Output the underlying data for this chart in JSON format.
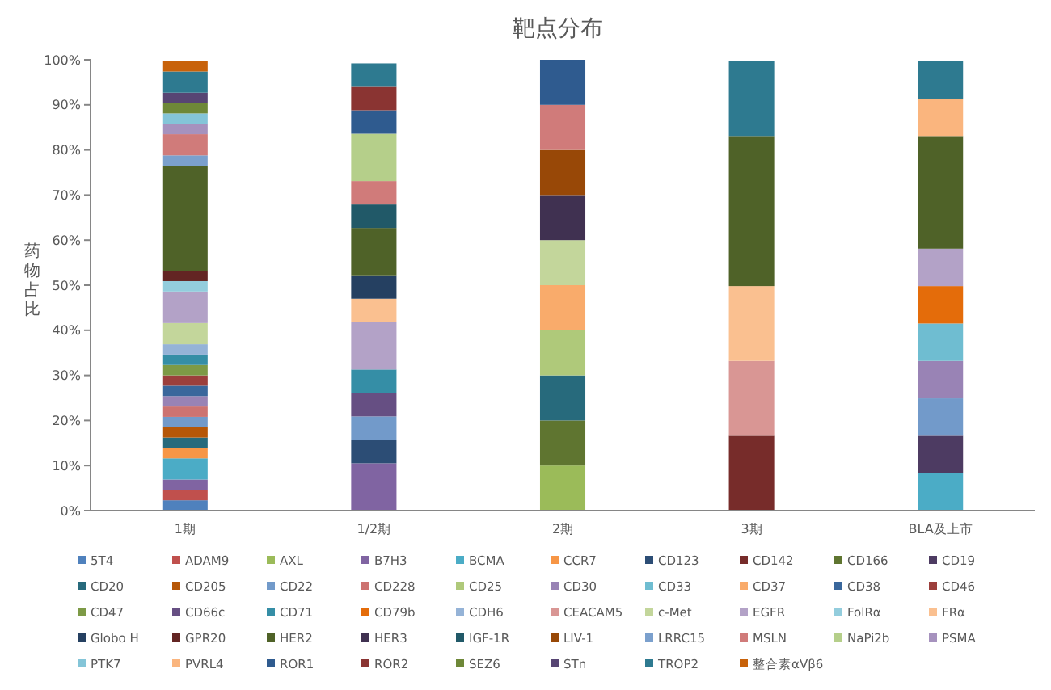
{
  "chart_data": {
    "type": "bar",
    "stacked": true,
    "title": "靶点分布",
    "ylabel": "药物占比",
    "categories": [
      "1期",
      "1/2期",
      "2期",
      "3期",
      "BLA及上市"
    ],
    "ylim": [
      0,
      100
    ],
    "yticks": [
      {
        "value": 0,
        "label": "0%"
      },
      {
        "value": 10,
        "label": "10%"
      },
      {
        "value": 20,
        "label": "20%"
      },
      {
        "value": 30,
        "label": "30%"
      },
      {
        "value": 40,
        "label": "40%"
      },
      {
        "value": 50,
        "label": "50%"
      },
      {
        "value": 60,
        "label": "60%"
      },
      {
        "value": 70,
        "label": "70%"
      },
      {
        "value": 80,
        "label": "80%"
      },
      {
        "value": 90,
        "label": "90%"
      },
      {
        "value": 100,
        "label": "100%"
      }
    ],
    "legend": "bottom",
    "series": [
      {
        "name": "5T4",
        "color": "#4f81bd",
        "values": [
          2.3,
          null,
          null,
          null,
          null
        ]
      },
      {
        "name": "ADAM9",
        "color": "#c0504d",
        "values": [
          2.3,
          null,
          null,
          null,
          null
        ]
      },
      {
        "name": "AXL",
        "color": "#9bbb59",
        "values": [
          null,
          null,
          10,
          null,
          null
        ]
      },
      {
        "name": "B7H3",
        "color": "#8064a2",
        "values": [
          2.3,
          10.5,
          null,
          null,
          null
        ]
      },
      {
        "name": "BCMA",
        "color": "#4bacc6",
        "values": [
          4.7,
          null,
          null,
          null,
          8.3
        ]
      },
      {
        "name": "CCR7",
        "color": "#f79646",
        "values": [
          2.3,
          null,
          null,
          null,
          null
        ]
      },
      {
        "name": "CD123",
        "color": "#2c4d75",
        "values": [
          null,
          5.2,
          null,
          null,
          null
        ]
      },
      {
        "name": "CD142",
        "color": "#772c2a",
        "values": [
          null,
          null,
          null,
          16.6,
          null
        ]
      },
      {
        "name": "CD166",
        "color": "#5f7530",
        "values": [
          null,
          null,
          10,
          null,
          null
        ]
      },
      {
        "name": "CD19",
        "color": "#4d3b62",
        "values": [
          null,
          null,
          null,
          null,
          8.3
        ]
      },
      {
        "name": "CD20",
        "color": "#276a7c",
        "values": [
          2.3,
          null,
          10,
          null,
          null
        ]
      },
      {
        "name": "CD205",
        "color": "#b65708",
        "values": [
          2.3,
          null,
          null,
          null,
          null
        ]
      },
      {
        "name": "CD22",
        "color": "#729aca",
        "values": [
          2.3,
          5.2,
          null,
          null,
          8.3
        ]
      },
      {
        "name": "CD228",
        "color": "#cd7371",
        "values": [
          2.3,
          null,
          null,
          null,
          null
        ]
      },
      {
        "name": "CD25",
        "color": "#afc97a",
        "values": [
          null,
          null,
          10,
          null,
          null
        ]
      },
      {
        "name": "CD30",
        "color": "#9983b5",
        "values": [
          2.3,
          null,
          null,
          null,
          8.3
        ]
      },
      {
        "name": "CD33",
        "color": "#6fbdd1",
        "values": [
          null,
          null,
          null,
          null,
          8.3
        ]
      },
      {
        "name": "CD37",
        "color": "#f9ab6b",
        "values": [
          null,
          null,
          10,
          null,
          null
        ]
      },
      {
        "name": "CD38",
        "color": "#3a679c",
        "values": [
          2.3,
          null,
          null,
          null,
          null
        ]
      },
      {
        "name": "CD46",
        "color": "#9c3f3c",
        "values": [
          2.3,
          null,
          null,
          null,
          null
        ]
      },
      {
        "name": "CD47",
        "color": "#7d9a46",
        "values": [
          2.3,
          null,
          null,
          null,
          null
        ]
      },
      {
        "name": "CD66c",
        "color": "#664f83",
        "values": [
          null,
          5.2,
          null,
          null,
          null
        ]
      },
      {
        "name": "CD71",
        "color": "#358ea6",
        "values": [
          2.3,
          5.2,
          null,
          null,
          null
        ]
      },
      {
        "name": "CD79b",
        "color": "#e46c0a",
        "values": [
          null,
          null,
          null,
          null,
          8.3
        ]
      },
      {
        "name": "CDH6",
        "color": "#95b3d7",
        "values": [
          2.3,
          null,
          null,
          null,
          null
        ]
      },
      {
        "name": "CEACAM5",
        "color": "#d99694",
        "values": [
          null,
          null,
          null,
          16.6,
          null
        ]
      },
      {
        "name": "c-Met",
        "color": "#c3d69b",
        "values": [
          4.7,
          null,
          10,
          null,
          null
        ]
      },
      {
        "name": "EGFR",
        "color": "#b3a2c7",
        "values": [
          7.0,
          10.5,
          null,
          null,
          8.3
        ]
      },
      {
        "name": "FolRα",
        "color": "#93cddd",
        "values": [
          2.3,
          null,
          null,
          null,
          null
        ]
      },
      {
        "name": "FRα",
        "color": "#fac090",
        "values": [
          null,
          5.2,
          null,
          16.6,
          null
        ]
      },
      {
        "name": "Globo H",
        "color": "#254061",
        "values": [
          null,
          5.2,
          null,
          null,
          null
        ]
      },
      {
        "name": "GPR20",
        "color": "#632523",
        "values": [
          2.3,
          null,
          null,
          null,
          null
        ]
      },
      {
        "name": "HER2",
        "color": "#4f6228",
        "values": [
          23.3,
          10.5,
          null,
          33.3,
          25
        ]
      },
      {
        "name": "HER3",
        "color": "#403151",
        "values": [
          null,
          null,
          10,
          null,
          null
        ]
      },
      {
        "name": "IGF-1R",
        "color": "#215968",
        "values": [
          null,
          5.2,
          null,
          null,
          null
        ]
      },
      {
        "name": "LIV-1",
        "color": "#984807",
        "values": [
          null,
          null,
          10,
          null,
          null
        ]
      },
      {
        "name": "LRRC15",
        "color": "#7ba0cd",
        "values": [
          2.3,
          null,
          null,
          null,
          null
        ]
      },
      {
        "name": "MSLN",
        "color": "#d07b7a",
        "values": [
          4.7,
          5.2,
          10,
          null,
          null
        ]
      },
      {
        "name": "NaPi2b",
        "color": "#b5cf8a",
        "values": [
          null,
          10.5,
          null,
          null,
          null
        ]
      },
      {
        "name": "PSMA",
        "color": "#a692be",
        "values": [
          2.3,
          null,
          null,
          null,
          null
        ]
      },
      {
        "name": "PTK7",
        "color": "#84c5d8",
        "values": [
          2.3,
          null,
          null,
          null,
          null
        ]
      },
      {
        "name": "PVRL4",
        "color": "#fab57e",
        "values": [
          null,
          null,
          null,
          null,
          8.3
        ]
      },
      {
        "name": "ROR1",
        "color": "#2f5b8f",
        "values": [
          null,
          5.2,
          10,
          null,
          null
        ]
      },
      {
        "name": "ROR2",
        "color": "#8a3432",
        "values": [
          null,
          5.2,
          null,
          null,
          null
        ]
      },
      {
        "name": "SEZ6",
        "color": "#6e8838",
        "values": [
          2.3,
          null,
          null,
          null,
          null
        ]
      },
      {
        "name": "STn",
        "color": "#574573",
        "values": [
          2.3,
          null,
          null,
          null,
          null
        ]
      },
      {
        "name": "TROP2",
        "color": "#2e7a90",
        "values": [
          4.7,
          5.2,
          null,
          16.6,
          8.3
        ]
      },
      {
        "name": "整合素αVβ6",
        "color": "#c8620a",
        "values": [
          2.3,
          null,
          null,
          null,
          null
        ]
      }
    ]
  }
}
